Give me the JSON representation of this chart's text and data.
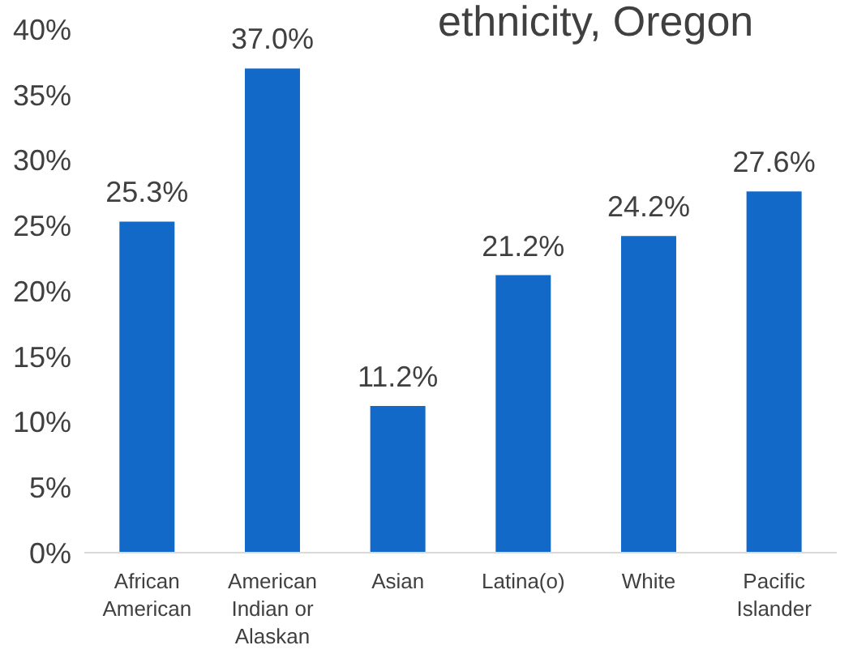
{
  "chart_data": {
    "type": "bar",
    "title": "ethnicity, Oregon",
    "categories": [
      "African American",
      "American Indian or Alaskan",
      "Asian",
      "Latina(o)",
      "White",
      "Pacific Islander"
    ],
    "values": [
      25.3,
      37.0,
      11.2,
      21.2,
      24.2,
      27.6
    ],
    "value_labels": [
      "25.3%",
      "37.0%",
      "11.2%",
      "21.2%",
      "24.2%",
      "27.6%"
    ],
    "color": "#1269c7",
    "ylim": [
      0,
      40
    ],
    "yticks": [
      {
        "value": 0,
        "label": "0%"
      },
      {
        "value": 5,
        "label": "5%"
      },
      {
        "value": 10,
        "label": "10%"
      },
      {
        "value": 15,
        "label": "15%"
      },
      {
        "value": 20,
        "label": "20%"
      },
      {
        "value": 25,
        "label": "25%"
      },
      {
        "value": 30,
        "label": "30%"
      },
      {
        "value": 35,
        "label": "35%"
      },
      {
        "value": 40,
        "label": "40%"
      }
    ],
    "grid": false,
    "legend": false
  }
}
